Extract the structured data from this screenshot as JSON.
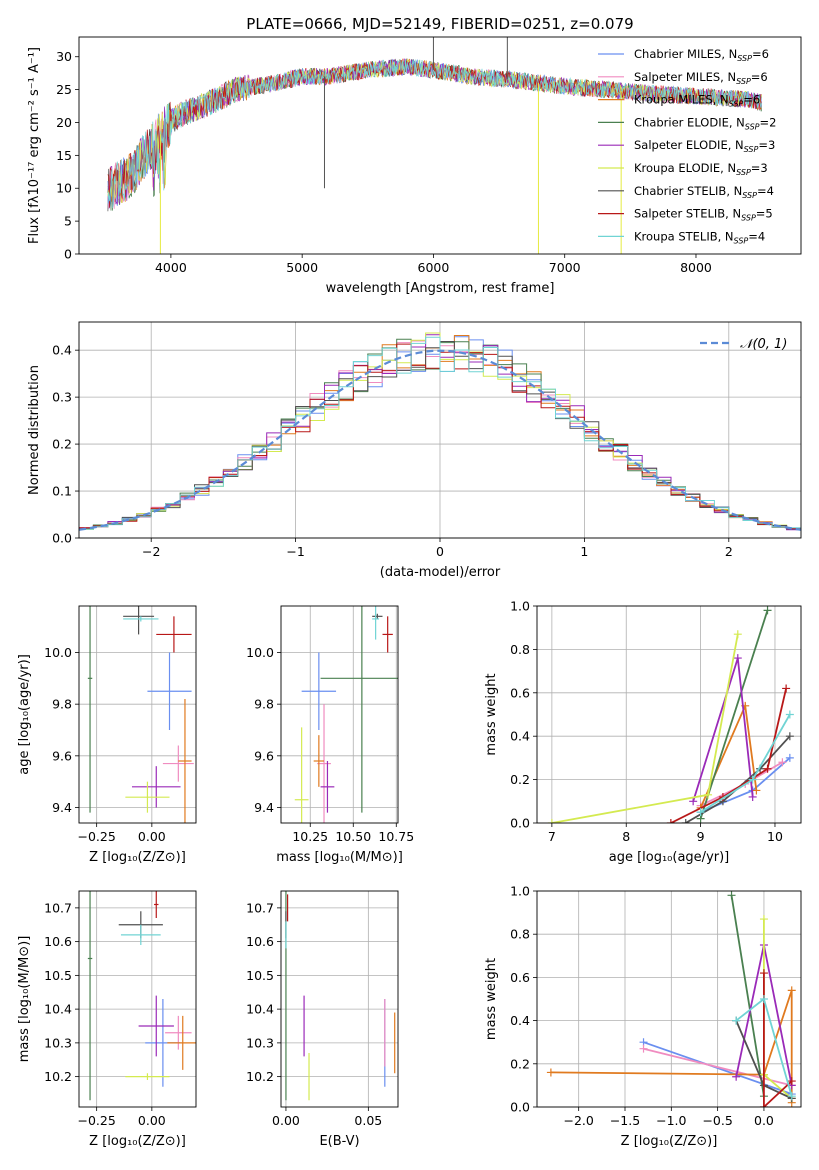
{
  "colors": {
    "Chabrier MILES": "#6a8ff0",
    "Salpeter MILES": "#f08cc0",
    "Kroupa MILES": "#e07a1f",
    "Chabrier ELODIE": "#4a8050",
    "Salpeter ELODIE": "#9a2ab8",
    "Kroupa ELODIE": "#d4ea50",
    "Chabrier STELIB": "#505050",
    "Salpeter STELIB": "#b81818",
    "Kroupa STELIB": "#70d4d4"
  },
  "chart_data": [
    {
      "id": "spectrum",
      "type": "line",
      "title": "PLATE=0666, MJD=52149, FIBERID=0251, z=0.079",
      "xlabel": "wavelength [Angstrom, rest frame]",
      "ylabel": "Flux [fλ10⁻¹⁷ erg cm⁻² s⁻¹ A⁻¹]",
      "xlim": [
        3300,
        8800
      ],
      "ylim": [
        0,
        33
      ],
      "xticks": [
        4000,
        5000,
        6000,
        7000,
        8000
      ],
      "yticks": [
        0,
        5,
        10,
        15,
        20,
        25,
        30
      ],
      "legend_position": "top-right",
      "legend": [
        {
          "label": "Chabrier MILES, N",
          "sub": "SSP",
          "eq": "=6"
        },
        {
          "label": "Salpeter MILES, N",
          "sub": "SSP",
          "eq": "=6"
        },
        {
          "label": "Kroupa MILES, N",
          "sub": "SSP",
          "eq": "=6"
        },
        {
          "label": "Chabrier ELODIE, N",
          "sub": "SSP",
          "eq": "=2"
        },
        {
          "label": "Salpeter ELODIE, N",
          "sub": "SSP",
          "eq": "=3"
        },
        {
          "label": "Kroupa ELODIE, N",
          "sub": "SSP",
          "eq": "=3"
        },
        {
          "label": "Chabrier STELIB, N",
          "sub": "SSP",
          "eq": "=4"
        },
        {
          "label": "Salpeter STELIB, N",
          "sub": "SSP",
          "eq": "=5"
        },
        {
          "label": "Kroupa STELIB, N",
          "sub": "SSP",
          "eq": "=4"
        }
      ],
      "continuum_x": [
        3550,
        3700,
        3800,
        3950,
        4050,
        4300,
        4500,
        4800,
        5000,
        5200,
        5500,
        5800,
        6000,
        6300,
        6600,
        6800,
        7000,
        7300,
        7600,
        8000,
        8400,
        8500
      ],
      "continuum_y": [
        10,
        12,
        15,
        19,
        21,
        23,
        25,
        26,
        27,
        27,
        28,
        28.5,
        28,
        27,
        26.5,
        26,
        25.5,
        25,
        24.5,
        24,
        23.5,
        23
      ],
      "spikes": [
        [
          5170,
          10
        ],
        [
          6000,
          33
        ],
        [
          6563,
          33
        ],
        [
          6800,
          0
        ],
        [
          3920,
          0
        ],
        [
          7430,
          0
        ]
      ]
    },
    {
      "id": "residuals",
      "type": "histogram",
      "xlabel": "(data-model)/error",
      "ylabel": "Normed distribution",
      "xlim": [
        -2.5,
        2.5
      ],
      "ylim": [
        0,
        0.46
      ],
      "xticks": [
        -2,
        -1,
        0,
        1,
        2
      ],
      "yticks": [
        0.0,
        0.1,
        0.2,
        0.3,
        0.4
      ],
      "bin_width": 0.1,
      "reference": {
        "label": "𝒩(0, 1)",
        "mean": 0,
        "sigma": 1,
        "color": "#5b8bd6"
      },
      "legend_position": "top-right"
    },
    {
      "id": "age-vs-Z",
      "type": "errorbar",
      "xlabel": "Z [log₁₀(Z/Z⊙)]",
      "ylabel": "age  [log₁₀(age/yr)]",
      "xlim": [
        -0.33,
        0.2
      ],
      "ylim": [
        9.34,
        10.18
      ],
      "xticks": [
        -0.25,
        0.0
      ],
      "yticks": [
        9.4,
        9.6,
        9.8,
        10.0
      ],
      "points": [
        {
          "m": "Chabrier MILES",
          "x": 0.08,
          "y": 9.85,
          "xe": 0.1,
          "ye": 0.15
        },
        {
          "m": "Salpeter MILES",
          "x": 0.12,
          "y": 9.57,
          "xe": 0.07,
          "ye": 0.07
        },
        {
          "m": "Kroupa MILES",
          "x": 0.15,
          "y": 9.58,
          "xe": 0.03,
          "ye": 0.24
        },
        {
          "m": "Chabrier ELODIE",
          "x": -0.28,
          "y": 9.9,
          "xe": 0.01,
          "ye": 0.52
        },
        {
          "m": "Salpeter ELODIE",
          "x": 0.02,
          "y": 9.48,
          "xe": 0.11,
          "ye": 0.08
        },
        {
          "m": "Kroupa ELODIE",
          "x": -0.02,
          "y": 9.44,
          "xe": 0.1,
          "ye": 0.06
        },
        {
          "m": "Chabrier STELIB",
          "x": -0.06,
          "y": 10.14,
          "xe": 0.07,
          "ye": 0.07
        },
        {
          "m": "Salpeter STELIB",
          "x": 0.1,
          "y": 10.07,
          "xe": 0.08,
          "ye": 0.07
        },
        {
          "m": "Kroupa STELIB",
          "x": -0.05,
          "y": 10.13,
          "xe": 0.08,
          "ye": 0.01
        }
      ]
    },
    {
      "id": "age-vs-mass",
      "type": "errorbar",
      "xlabel": "mass [log₁₀(M/M⊙)]",
      "ylabel": "",
      "xlim": [
        10.08,
        10.76
      ],
      "ylim": [
        9.34,
        10.18
      ],
      "xticks": [
        10.25,
        10.5,
        10.75
      ],
      "yticks": [
        9.4,
        9.6,
        9.8,
        10.0
      ],
      "points": [
        {
          "m": "Chabrier MILES",
          "x": 10.3,
          "y": 9.85,
          "xe": 0.1,
          "ye": 0.15
        },
        {
          "m": "Salpeter MILES",
          "x": 10.33,
          "y": 9.57,
          "xe": 0.04,
          "ye": 0.23
        },
        {
          "m": "Kroupa MILES",
          "x": 10.3,
          "y": 9.58,
          "xe": 0.03,
          "ye": 0.1
        },
        {
          "m": "Chabrier ELODIE",
          "x": 10.55,
          "y": 9.9,
          "xe": 0.24,
          "ye": 0.52
        },
        {
          "m": "Salpeter ELODIE",
          "x": 10.35,
          "y": 9.48,
          "xe": 0.04,
          "ye": 0.1
        },
        {
          "m": "Kroupa ELODIE",
          "x": 10.2,
          "y": 9.43,
          "xe": 0.04,
          "ye": 0.28
        },
        {
          "m": "Chabrier STELIB",
          "x": 10.64,
          "y": 10.14,
          "xe": 0.03,
          "ye": 0.01
        },
        {
          "m": "Salpeter STELIB",
          "x": 10.7,
          "y": 10.07,
          "xe": 0.03,
          "ye": 0.07
        },
        {
          "m": "Kroupa STELIB",
          "x": 10.63,
          "y": 10.13,
          "xe": 0.02,
          "ye": 0.08
        }
      ]
    },
    {
      "id": "weight-vs-age",
      "type": "line",
      "xlabel": "age  [log₁₀(age/yr)]",
      "ylabel": "mass weight",
      "xlim": [
        6.8,
        10.35
      ],
      "ylim": [
        0,
        1
      ],
      "xticks": [
        7,
        8,
        9,
        10
      ],
      "yticks": [
        0.0,
        0.2,
        0.4,
        0.6,
        0.8,
        1.0
      ],
      "grid": true,
      "series": [
        {
          "m": "Chabrier MILES",
          "x": [
            9.0,
            9.7,
            10.2
          ],
          "y": [
            0.05,
            0.15,
            0.3
          ]
        },
        {
          "m": "Salpeter MILES",
          "x": [
            9.0,
            9.6,
            10.1
          ],
          "y": [
            0.08,
            0.18,
            0.28
          ]
        },
        {
          "m": "Kroupa MILES",
          "x": [
            9.0,
            9.6,
            9.75
          ],
          "y": [
            0.07,
            0.54,
            0.15
          ]
        },
        {
          "m": "Chabrier ELODIE",
          "x": [
            9.0,
            9.9
          ],
          "y": [
            0.02,
            0.98
          ]
        },
        {
          "m": "Salpeter ELODIE",
          "x": [
            8.9,
            9.5,
            9.7
          ],
          "y": [
            0.1,
            0.76,
            0.12
          ]
        },
        {
          "m": "Kroupa ELODIE",
          "x": [
            7.0,
            9.1,
            9.5
          ],
          "y": [
            0.0,
            0.13,
            0.87
          ]
        },
        {
          "m": "Chabrier STELIB",
          "x": [
            8.8,
            9.3,
            9.8,
            10.2
          ],
          "y": [
            0.0,
            0.1,
            0.25,
            0.4
          ]
        },
        {
          "m": "Salpeter STELIB",
          "x": [
            8.6,
            9.3,
            9.9,
            10.15
          ],
          "y": [
            0.0,
            0.12,
            0.25,
            0.62
          ]
        },
        {
          "m": "Kroupa STELIB",
          "x": [
            9.0,
            9.7,
            10.2
          ],
          "y": [
            0.05,
            0.2,
            0.5
          ]
        }
      ]
    },
    {
      "id": "mass-vs-Z",
      "type": "errorbar",
      "xlabel": "Z [log₁₀(Z/Z⊙)]",
      "ylabel": "mass [log₁₀(M/M⊙)]",
      "xlim": [
        -0.33,
        0.2
      ],
      "ylim": [
        10.11,
        10.75
      ],
      "xticks": [
        -0.25,
        0.0
      ],
      "yticks": [
        10.2,
        10.3,
        10.4,
        10.5,
        10.6,
        10.7
      ],
      "points": [
        {
          "m": "Chabrier MILES",
          "x": 0.05,
          "y": 10.3,
          "xe": 0.08,
          "ye": 0.13
        },
        {
          "m": "Salpeter MILES",
          "x": 0.12,
          "y": 10.33,
          "xe": 0.06,
          "ye": 0.05
        },
        {
          "m": "Kroupa MILES",
          "x": 0.14,
          "y": 10.3,
          "xe": 0.07,
          "ye": 0.08
        },
        {
          "m": "Chabrier ELODIE",
          "x": -0.28,
          "y": 10.55,
          "xe": 0.01,
          "ye": 0.42
        },
        {
          "m": "Salpeter ELODIE",
          "x": 0.02,
          "y": 10.35,
          "xe": 0.08,
          "ye": 0.09
        },
        {
          "m": "Kroupa ELODIE",
          "x": -0.02,
          "y": 10.2,
          "xe": 0.1,
          "ye": 0.01
        },
        {
          "m": "Chabrier STELIB",
          "x": -0.05,
          "y": 10.65,
          "xe": 0.1,
          "ye": 0.04
        },
        {
          "m": "Salpeter STELIB",
          "x": 0.02,
          "y": 10.71,
          "xe": 0.01,
          "ye": 0.04
        },
        {
          "m": "Kroupa STELIB",
          "x": -0.05,
          "y": 10.62,
          "xe": 0.09,
          "ye": 0.03
        }
      ]
    },
    {
      "id": "mass-vs-ebv",
      "type": "errorbar",
      "xlabel": "E(B-V)",
      "ylabel": "",
      "xlim": [
        -0.003,
        0.068
      ],
      "ylim": [
        10.11,
        10.75
      ],
      "xticks": [
        0.0,
        0.05
      ],
      "yticks": [
        10.2,
        10.3,
        10.4,
        10.5,
        10.6,
        10.7
      ],
      "points": [
        {
          "m": "Chabrier MILES",
          "x": 0.06,
          "y": 10.3,
          "xe": 0,
          "ye": 0.13
        },
        {
          "m": "Salpeter MILES",
          "x": 0.06,
          "y": 10.33,
          "xe": 0,
          "ye": 0.1
        },
        {
          "m": "Kroupa MILES",
          "x": 0.066,
          "y": 10.3,
          "xe": 0,
          "ye": 0.09
        },
        {
          "m": "Chabrier ELODIE",
          "x": 0.0,
          "y": 10.55,
          "xe": 0,
          "ye": 0.42
        },
        {
          "m": "Salpeter ELODIE",
          "x": 0.011,
          "y": 10.35,
          "xe": 0,
          "ye": 0.09
        },
        {
          "m": "Kroupa ELODIE",
          "x": 0.014,
          "y": 10.2,
          "xe": 0,
          "ye": 0.07
        },
        {
          "m": "Chabrier STELIB",
          "x": 0.0,
          "y": 10.65,
          "xe": 0,
          "ye": 0.04
        },
        {
          "m": "Salpeter STELIB",
          "x": 0.001,
          "y": 10.7,
          "xe": 0,
          "ye": 0.04
        },
        {
          "m": "Kroupa STELIB",
          "x": 0.0,
          "y": 10.62,
          "xe": 0,
          "ye": 0.04
        }
      ]
    },
    {
      "id": "weight-vs-Z",
      "type": "line",
      "xlabel": "Z [log₁₀(Z/Z⊙)]",
      "ylabel": "mass weight",
      "xlim": [
        -2.45,
        0.4
      ],
      "ylim": [
        0,
        1
      ],
      "xticks": [
        -2.0,
        -1.5,
        -1.0,
        -0.5,
        0.0
      ],
      "yticks": [
        0.0,
        0.2,
        0.4,
        0.6,
        0.8,
        1.0
      ],
      "grid": true,
      "series": [
        {
          "m": "Chabrier MILES",
          "x": [
            -1.3,
            0.3
          ],
          "y": [
            0.3,
            0.06
          ]
        },
        {
          "m": "Salpeter MILES",
          "x": [
            -1.3,
            0.3
          ],
          "y": [
            0.27,
            0.1
          ]
        },
        {
          "m": "Kroupa MILES",
          "x": [
            -2.3,
            0.0,
            0.3,
            0.3
          ],
          "y": [
            0.16,
            0.15,
            0.54,
            0.02
          ]
        },
        {
          "m": "Chabrier ELODIE",
          "x": [
            -0.35,
            0.0
          ],
          "y": [
            0.98,
            0.05
          ]
        },
        {
          "m": "Salpeter ELODIE",
          "x": [
            -0.3,
            0.0,
            0.3
          ],
          "y": [
            0.14,
            0.75,
            0.1
          ]
        },
        {
          "m": "Kroupa ELODIE",
          "x": [
            0.0,
            0.0,
            0.3
          ],
          "y": [
            0.87,
            0.15,
            0.04
          ]
        },
        {
          "m": "Chabrier STELIB",
          "x": [
            -0.3,
            0.0,
            0.3
          ],
          "y": [
            0.4,
            0.1,
            0.04
          ]
        },
        {
          "m": "Salpeter STELIB",
          "x": [
            0.0,
            0.0,
            0.3
          ],
          "y": [
            0.62,
            0.0,
            0.12
          ]
        },
        {
          "m": "Kroupa STELIB",
          "x": [
            -0.3,
            0.0,
            0.3
          ],
          "y": [
            0.4,
            0.5,
            0.05
          ]
        }
      ]
    }
  ]
}
